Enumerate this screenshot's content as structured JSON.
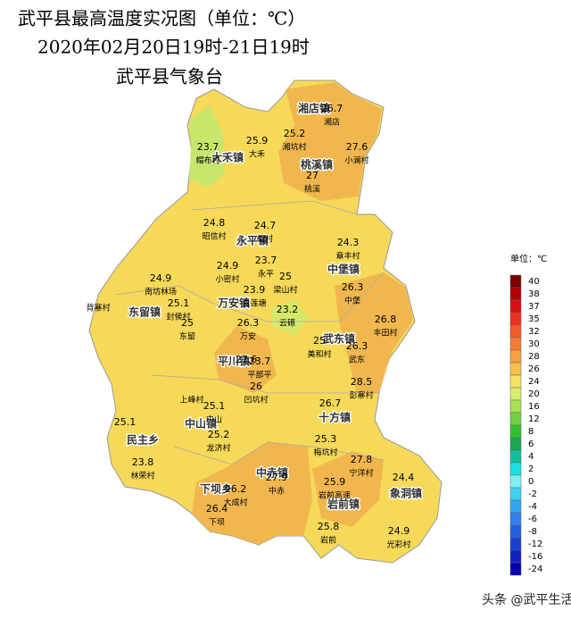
{
  "title_lines": [
    "武平县最高温度实况图（单位：℃）",
    "2020年02月20日19时-21日19时",
    "武平县气象台"
  ],
  "towns": [
    "湘店镇",
    "大禾镇",
    "桃溪镇",
    "永平镇",
    "中堡镇",
    "东留镇",
    "万安镇",
    "武东镇",
    "平川镇",
    "十方镇",
    "中山镇",
    "民主乡",
    "中赤镇",
    "下坝乡",
    "岩前镇",
    "象洞镇"
  ],
  "stations": [
    {
      "value": 26.7,
      "name": "湘店"
    },
    {
      "value": 25.2,
      "name": "湘坑村"
    },
    {
      "value": 27.6,
      "name": "小澜村"
    },
    {
      "value": 23.7,
      "name": "帽布村"
    },
    {
      "value": 25.9,
      "name": "大禾"
    },
    {
      "value": 27,
      "name": "桃溪"
    },
    {
      "value": 24.8,
      "name": "昭信村"
    },
    {
      "value": 24.7,
      "name": "帽村"
    },
    {
      "value": 24.3,
      "name": "章丰村"
    },
    {
      "value": 23.7,
      "name": "永平"
    },
    {
      "value": 24.9,
      "name": "小密村"
    },
    {
      "value": 25,
      "name": "梁山村"
    },
    {
      "value": 24.9,
      "name": "南坊林场"
    },
    {
      "value": 25.1,
      "name": "封侯村"
    },
    {
      "value": 23.9,
      "name": "白莲塘"
    },
    {
      "value": 23.2,
      "name": "云礤"
    },
    {
      "value": 26.3,
      "name": "中堡"
    },
    {
      "value": 25,
      "name": "东留"
    },
    {
      "value": 26.3,
      "name": "万安"
    },
    {
      "value": 26.8,
      "name": "丰田村"
    },
    {
      "value": 25,
      "name": "美和村"
    },
    {
      "value": 26.3,
      "name": "武东"
    },
    {
      "value": 27.6
    },
    {
      "value": 23.7,
      "name": "平部平"
    },
    {
      "value": 26,
      "name": "凹坑村"
    },
    {
      "value": 28.5,
      "name": "彭寨村"
    },
    {
      "value": 25.1,
      "name": "中山"
    },
    {
      "value": 26.7
    },
    {
      "value": 25.1
    },
    {
      "value": 25.2,
      "name": "龙济村"
    },
    {
      "value": 25.3,
      "name": "梅坑村"
    },
    {
      "value": 27.8,
      "name": "宁洋村"
    },
    {
      "value": 23.8,
      "name": "林荣村"
    },
    {
      "value": 24.4
    },
    {
      "value": 27.9,
      "name": "中赤"
    },
    {
      "value": 25.9,
      "name": "岩前高速"
    },
    {
      "value": 26.2,
      "name": "大成村"
    },
    {
      "value": 26.4,
      "name": "下坝"
    },
    {
      "value": 25.8,
      "name": "岩前"
    },
    {
      "value": 24.9,
      "name": "光彩村"
    }
  ],
  "places": [
    "背寨村",
    "上峰村"
  ],
  "legend": {
    "title": "单位：℃",
    "levels": [
      {
        "value": 40,
        "color": "#7a0000"
      },
      {
        "value": 38,
        "color": "#b00000"
      },
      {
        "value": 37,
        "color": "#d81010"
      },
      {
        "value": 35,
        "color": "#ee3020"
      },
      {
        "value": 32,
        "color": "#f25a28"
      },
      {
        "value": 30,
        "color": "#f47c30"
      },
      {
        "value": 28,
        "color": "#f5a040"
      },
      {
        "value": 26,
        "color": "#f7c048"
      },
      {
        "value": 24,
        "color": "#f8e060"
      },
      {
        "value": 20,
        "color": "#d8ee70"
      },
      {
        "value": 16,
        "color": "#a8e050"
      },
      {
        "value": 12,
        "color": "#70d040"
      },
      {
        "value": 8,
        "color": "#30c030"
      },
      {
        "value": 6,
        "color": "#18a850"
      },
      {
        "value": 4,
        "color": "#10c0a0"
      },
      {
        "value": 2,
        "color": "#20e0e0"
      },
      {
        "value": 0,
        "color": "#80f0f0"
      },
      {
        "value": -2,
        "color": "#40d0f0"
      },
      {
        "value": -4,
        "color": "#30a8f0"
      },
      {
        "value": -6,
        "color": "#3080f0"
      },
      {
        "value": -8,
        "color": "#2060e0"
      },
      {
        "value": -12,
        "color": "#1840d0"
      },
      {
        "value": -16,
        "color": "#1020c0"
      },
      {
        "value": -24,
        "color": "#0000b0"
      }
    ]
  },
  "watermark": "头条 @武平生活"
}
